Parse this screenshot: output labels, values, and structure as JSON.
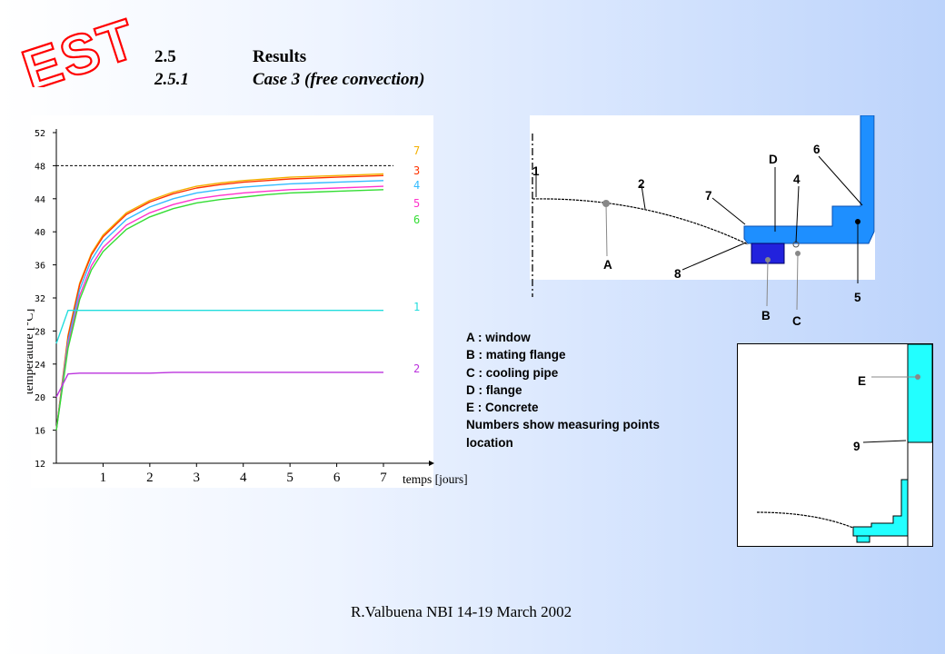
{
  "logo_text": "EST",
  "section": {
    "number": "2.5",
    "title": "Results",
    "sub_number": "2.5.1",
    "sub_title": "Case 3 (free convection)"
  },
  "chart_data": {
    "type": "line",
    "xlabel": "temps [jours]",
    "ylabel": "température [°C]",
    "xlim": [
      0,
      7
    ],
    "ylim": [
      12,
      52
    ],
    "x_ticks": [
      1,
      2,
      3,
      4,
      5,
      6,
      7
    ],
    "y_ticks": [
      12,
      16,
      20,
      24,
      28,
      32,
      36,
      40,
      44,
      48,
      52
    ],
    "reference_line": 48,
    "x": [
      0,
      0.25,
      0.5,
      0.75,
      1,
      1.5,
      2,
      2.5,
      3,
      3.5,
      4,
      4.5,
      5,
      5.5,
      6,
      6.5,
      7
    ],
    "series": [
      {
        "name": "7",
        "color": "#f4b000",
        "values": [
          16,
          27.5,
          33.8,
          37.4,
          39.6,
          42.3,
          43.8,
          44.8,
          45.5,
          45.9,
          46.2,
          46.4,
          46.6,
          46.7,
          46.8,
          46.9,
          47.0
        ]
      },
      {
        "name": "3",
        "color": "#ff3300",
        "values": [
          16,
          27.3,
          33.6,
          37.2,
          39.4,
          42.1,
          43.6,
          44.6,
          45.3,
          45.7,
          46.0,
          46.2,
          46.4,
          46.5,
          46.6,
          46.7,
          46.8
        ]
      },
      {
        "name": "4",
        "color": "#33bbff",
        "values": [
          16,
          26.8,
          33.0,
          36.6,
          38.8,
          41.5,
          43.0,
          44.0,
          44.7,
          45.1,
          45.4,
          45.6,
          45.8,
          45.9,
          46.0,
          46.1,
          46.2
        ]
      },
      {
        "name": "5",
        "color": "#ff33cc",
        "values": [
          16,
          26.3,
          32.3,
          35.9,
          38.1,
          40.8,
          42.3,
          43.3,
          44.0,
          44.4,
          44.7,
          44.9,
          45.1,
          45.2,
          45.3,
          45.4,
          45.5
        ]
      },
      {
        "name": "6",
        "color": "#33dd33",
        "values": [
          16,
          25.9,
          31.8,
          35.4,
          37.6,
          40.3,
          41.8,
          42.8,
          43.5,
          43.9,
          44.2,
          44.5,
          44.7,
          44.8,
          44.9,
          45.0,
          45.1
        ]
      },
      {
        "name": "1",
        "color": "#22dddd",
        "values": [
          26.5,
          30.5,
          30.5,
          30.5,
          30.5,
          30.5,
          30.5,
          30.5,
          30.5,
          30.5,
          30.5,
          30.5,
          30.5,
          30.5,
          30.5,
          30.5,
          30.5
        ]
      },
      {
        "name": "2",
        "color": "#bb33dd",
        "values": [
          20,
          22.8,
          22.9,
          22.9,
          22.9,
          22.9,
          22.9,
          23.0,
          23.0,
          23.0,
          23.0,
          23.0,
          23.0,
          23.0,
          23.0,
          23.0,
          23.0
        ]
      }
    ]
  },
  "legend": {
    "lines": [
      "A : window",
      "B : mating flange",
      "C : cooling pipe",
      "D : flange",
      "E : Concrete",
      "Numbers show measuring points",
      "location"
    ]
  },
  "diagram1": {
    "labels": {
      "p1": "1",
      "p2": "2",
      "p4": "4",
      "p5": "5",
      "p6": "6",
      "p7": "7",
      "p8": "8",
      "A": "A",
      "B": "B",
      "C": "C",
      "D": "D"
    }
  },
  "diagram2": {
    "labels": {
      "E": "E",
      "p9": "9"
    }
  },
  "footer": "R.Valbuena NBI 14-19 March 2002",
  "colors": {
    "flange_blue": "#1e8fff",
    "mating_flange": "#2222dd",
    "concrete_cyan": "#22ffff",
    "logo_red": "#ff0000"
  }
}
